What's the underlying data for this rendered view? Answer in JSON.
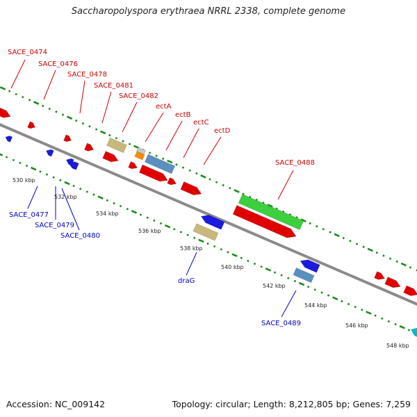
{
  "title": "Saccharopolyspora erythraea NRRL 2338, complete genome",
  "footer": {
    "accession": "Accession: NC_009142",
    "topology": "Topology: circular; Length: 8,212,805 bp; Genes: 7,259"
  },
  "colors": {
    "forward_label": "#cc0000",
    "reverse_label": "#0000cc",
    "backbone": "#8a8a8a",
    "dots": "#1a8a1a",
    "gene_red": "#e00000",
    "gene_blue": "#1a1ae0",
    "gene_green": "#3ecf3e",
    "gene_steel": "#5a8fc0",
    "gene_khaki": "#c8b97a",
    "gene_orange": "#ff8c00",
    "gene_silver": "#c8c8c8",
    "gene_cyan": "#00b8c8"
  },
  "ticks": [
    "530 kbp",
    "532 kbp",
    "534 kbp",
    "536 kbp",
    "538 kbp",
    "540 kbp",
    "542 kbp",
    "544 kbp",
    "546 kbp",
    "548 kbp"
  ],
  "forward_labels": [
    "SACE_0474",
    "SACE_0476",
    "SACE_0478",
    "SACE_0481",
    "SACE_0482",
    "ectA",
    "ectB",
    "ectC",
    "ectD",
    "SACE_0488"
  ],
  "reverse_labels": [
    "SACE_0477",
    "SACE_0479",
    "SACE_0480",
    "draG",
    "SACE_0489"
  ]
}
